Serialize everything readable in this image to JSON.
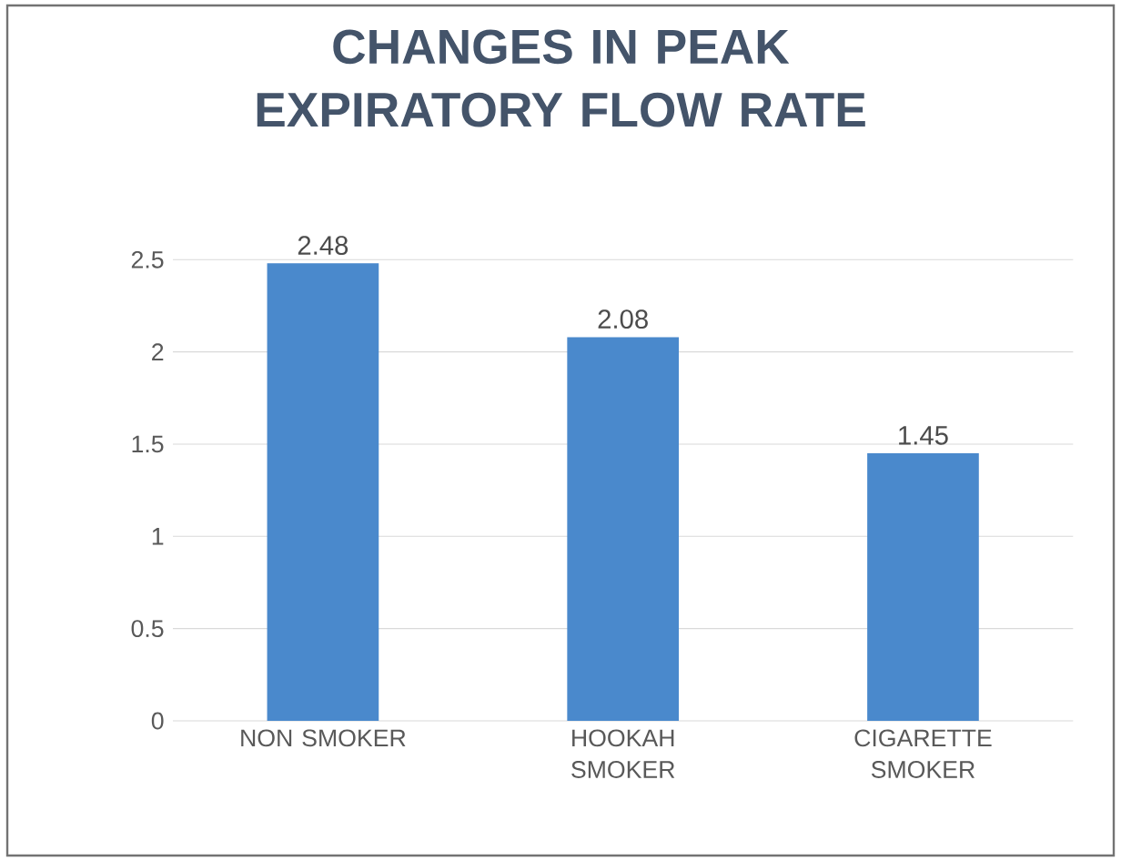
{
  "chart_data": {
    "type": "bar",
    "title": "CHANGES IN PEAK EXPIRATORY FLOW RATE",
    "categories": [
      "NON SMOKER",
      "HOOKAH SMOKER",
      "CIGARETTE SMOKER"
    ],
    "values": [
      2.48,
      2.08,
      1.45
    ],
    "value_labels": [
      "2.48",
      "2.08",
      "1.45"
    ],
    "color": "#4a89cc",
    "ylim": [
      0,
      2.5
    ],
    "yticks": [
      0,
      0.5,
      1,
      1.5,
      2,
      2.5
    ],
    "grid": "y"
  }
}
